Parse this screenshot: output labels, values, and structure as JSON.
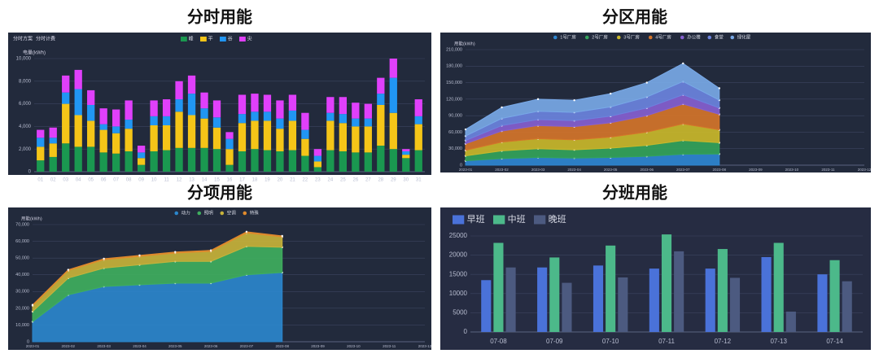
{
  "chart_data": [
    {
      "type": "bar",
      "stacked": true,
      "title": "分时用能",
      "filters": [
        "分时方案",
        "分时计费"
      ],
      "y_label": "电量(kWh)",
      "categories": [
        "01",
        "02",
        "03",
        "04",
        "05",
        "06",
        "07",
        "08",
        "09",
        "10",
        "11",
        "12",
        "13",
        "14",
        "15",
        "16",
        "17",
        "18",
        "19",
        "20",
        "21",
        "22",
        "23",
        "24",
        "25",
        "26",
        "27",
        "28",
        "29",
        "30",
        "31"
      ],
      "series": [
        {
          "name": "峰",
          "color": "#1a9850",
          "values": [
            1000,
            1300,
            2500,
            2200,
            2200,
            1700,
            1600,
            1800,
            600,
            1800,
            1900,
            2100,
            2100,
            2100,
            2000,
            600,
            1800,
            2000,
            1900,
            1800,
            1900,
            1400,
            400,
            1900,
            1800,
            1700,
            1700,
            2300,
            2000,
            1200,
            1900
          ]
        },
        {
          "name": "平",
          "color": "#f5c518",
          "values": [
            1200,
            1200,
            3500,
            2800,
            2300,
            2000,
            1800,
            2000,
            600,
            2300,
            2200,
            3200,
            2900,
            2600,
            1900,
            1400,
            2500,
            2500,
            2600,
            2000,
            2600,
            1500,
            500,
            2600,
            2500,
            2300,
            2300,
            3600,
            3200,
            300,
            2300
          ]
        },
        {
          "name": "谷",
          "color": "#2196f3",
          "values": [
            800,
            500,
            1000,
            2300,
            1400,
            500,
            600,
            800,
            500,
            800,
            800,
            1100,
            1900,
            900,
            900,
            900,
            800,
            800,
            800,
            900,
            900,
            800,
            500,
            700,
            800,
            700,
            700,
            1000,
            3100,
            300,
            700
          ]
        },
        {
          "name": "尖",
          "color": "#e040fb",
          "values": [
            700,
            900,
            1500,
            1700,
            1300,
            1400,
            1500,
            1700,
            600,
            1400,
            1500,
            1600,
            1600,
            1400,
            1500,
            600,
            1700,
            1600,
            1500,
            1600,
            1400,
            1500,
            600,
            1400,
            1500,
            1400,
            1300,
            1400,
            1700,
            200,
            1500
          ]
        }
      ],
      "ylim": [
        0,
        10000
      ],
      "yticks": [
        0,
        {
          "value": 2000,
          "label": "2,000"
        },
        {
          "value": 4000,
          "label": "4,000"
        },
        {
          "value": 6000,
          "label": "6,000"
        },
        {
          "value": 8000,
          "label": "8,000"
        },
        {
          "value": 10000,
          "label": "10,000"
        }
      ],
      "grid": true
    },
    {
      "type": "area",
      "stacked": true,
      "title": "分区用能",
      "y_label": "用能(kWh)",
      "categories": [
        "2023-01",
        "2023-02",
        "2023-03",
        "2023-04",
        "2023-05",
        "2023-06",
        "2023-07",
        "2023-08",
        "2023-09",
        "2023-10",
        "2023-11",
        "2023-12"
      ],
      "series": [
        {
          "name": "1号厂房",
          "color": "#2e86d1",
          "values": [
            8000,
            12000,
            14000,
            13000,
            14000,
            16000,
            20000,
            20414.54,
            null,
            null,
            null,
            null
          ]
        },
        {
          "name": "2号厂房",
          "color": "#33a35a",
          "values": [
            9000,
            14000,
            16000,
            15000,
            17000,
            20000,
            25000,
            20450.06,
            null,
            null,
            null,
            null
          ]
        },
        {
          "name": "3号厂房",
          "color": "#c9b72a",
          "values": [
            10000,
            16000,
            18000,
            18000,
            20000,
            24000,
            30000,
            23439.35,
            null,
            null,
            null,
            null
          ]
        },
        {
          "name": "4号厂房",
          "color": "#d4742a",
          "values": [
            12000,
            20000,
            24000,
            24000,
            26000,
            30000,
            36000,
            28196.43,
            null,
            null,
            null,
            null
          ]
        },
        {
          "name": "办公楼",
          "color": "#8660d0",
          "values": [
            6000,
            10000,
            11000,
            11000,
            12000,
            14000,
            17000,
            11561.6,
            null,
            null,
            null,
            null
          ]
        },
        {
          "name": "食堂",
          "color": "#6b83de",
          "values": [
            8000,
            13000,
            15000,
            15000,
            17000,
            20000,
            24000,
            14154.56,
            null,
            null,
            null,
            null
          ]
        },
        {
          "name": "绿化屋",
          "color": "#78a8e6",
          "values": [
            12000,
            20000,
            22000,
            22000,
            24000,
            26000,
            33000,
            21581.64,
            null,
            null,
            null,
            null
          ]
        }
      ],
      "ylim": [
        0,
        210000
      ],
      "yticks": [
        0,
        {
          "value": 30000,
          "label": "30,000"
        },
        {
          "value": 60000,
          "label": "60,000"
        },
        {
          "value": 90000,
          "label": "90,000"
        },
        {
          "value": 120000,
          "label": "120,000"
        },
        {
          "value": 150000,
          "label": "150,000"
        },
        {
          "value": 180000,
          "label": "180,000"
        },
        {
          "value": 210000,
          "label": "210,000"
        }
      ],
      "grid": true
    },
    {
      "type": "area",
      "stacked": true,
      "title": "分项用能",
      "y_label": "用能(kWh)",
      "categories": [
        "2023-01",
        "2023-02",
        "2023-03",
        "2023-04",
        "2023-05",
        "2023-06",
        "2023-07",
        "2023-08",
        "2023-09",
        "2023-10",
        "2023-11",
        "2023-12"
      ],
      "series": [
        {
          "name": "动力",
          "color": "#2b86cc",
          "values": [
            12000,
            28000,
            33000,
            34000,
            35000,
            35000,
            40000,
            41373,
            null,
            null,
            null,
            null
          ]
        },
        {
          "name": "照明",
          "color": "#3fae5e",
          "values": [
            6000,
            10000,
            11000,
            12000,
            13000,
            13000,
            17000,
            15092,
            null,
            null,
            null,
            null
          ]
        },
        {
          "name": "空调",
          "color": "#c7b23a",
          "values": [
            3500,
            4500,
            5000,
            5000,
            5000,
            6000,
            8000,
            6162.25,
            null,
            null,
            null,
            null
          ]
        },
        {
          "name": "特殊",
          "color": "#e08a2c",
          "values": [
            500,
            500,
            600,
            600,
            600,
            600,
            700,
            575,
            null,
            null,
            null,
            null
          ]
        }
      ],
      "ylim": [
        0,
        70000
      ],
      "yticks": [
        0,
        {
          "value": 10000,
          "label": "10,000"
        },
        {
          "value": 20000,
          "label": "20,000"
        },
        {
          "value": 30000,
          "label": "30,000"
        },
        {
          "value": 40000,
          "label": "40,000"
        },
        {
          "value": 50000,
          "label": "50,000"
        },
        {
          "value": 60000,
          "label": "60,000"
        },
        {
          "value": 70000,
          "label": "70,000"
        }
      ],
      "grid": true
    },
    {
      "type": "bar",
      "stacked": false,
      "title": "分班用能",
      "categories": [
        "07-08",
        "07-09",
        "07-10",
        "07-11",
        "07-12",
        "07-13",
        "07-14"
      ],
      "series": [
        {
          "name": "早班",
          "color": "#4a72d9",
          "values": [
            13500,
            16800,
            17300,
            16500,
            16500,
            19500,
            15000
          ]
        },
        {
          "name": "中班",
          "color": "#4cb98a",
          "values": [
            23200,
            19400,
            22500,
            25400,
            21600,
            23200,
            18700
          ]
        },
        {
          "name": "晚班",
          "color": "#4c5a80",
          "values": [
            16800,
            12800,
            14200,
            21000,
            14100,
            5300,
            13200
          ]
        }
      ],
      "ylim": [
        0,
        25000
      ],
      "yticks": [
        0,
        5000,
        10000,
        15000,
        20000,
        25000
      ],
      "grid": true
    }
  ]
}
